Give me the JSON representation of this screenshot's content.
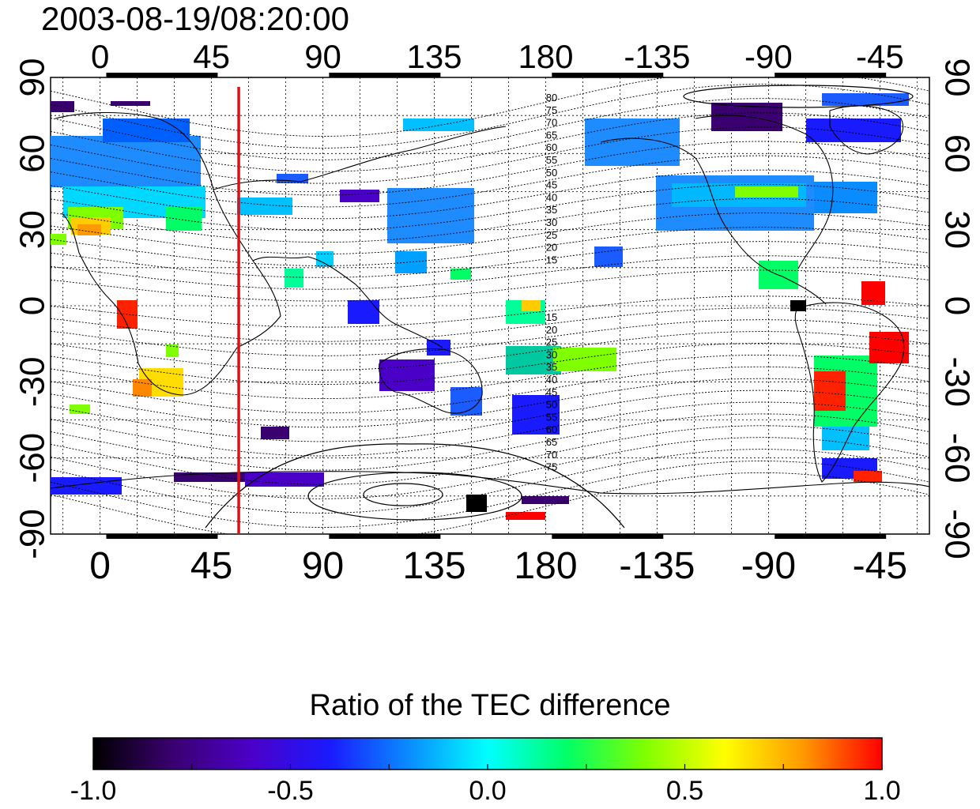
{
  "title": "2003-08-19/08:20:00",
  "map": {
    "lon_tick_labels": [
      "0",
      "45",
      "90",
      "135",
      "180",
      "-135",
      "-90",
      "-45"
    ],
    "lon_tick_values": [
      0,
      45,
      90,
      135,
      180,
      225,
      270,
      315
    ],
    "lat_tick_labels": [
      "90",
      "60",
      "30",
      "0",
      "-30",
      "-60",
      "-90"
    ],
    "lat_tick_values": [
      90,
      60,
      30,
      0,
      -30,
      -60,
      -90
    ],
    "lon_range": [
      -20,
      335
    ],
    "lat_range": [
      -90,
      90
    ],
    "red_meridian_lon": 56,
    "contour_labels_upper": [
      "80",
      "75",
      "70",
      "65",
      "60",
      "55",
      "50",
      "45",
      "40",
      "35",
      "30",
      "25",
      "20",
      "15"
    ],
    "contour_labels_lower": [
      "15",
      "20",
      "25",
      "30",
      "35",
      "40",
      "45",
      "50",
      "55",
      "60",
      "65",
      "70",
      "75"
    ],
    "colors": {
      "meridian": "#dd1111",
      "grid": "#000000",
      "coast": "#000000"
    }
  },
  "colorbar": {
    "title": "Ratio of the TEC difference",
    "tick_labels": [
      "-1.0",
      "-0.5",
      "0.0",
      "0.5",
      "1.0"
    ],
    "tick_values": [
      -1.0,
      -0.5,
      0.0,
      0.5,
      1.0
    ],
    "range": [
      -1.0,
      1.0
    ],
    "colormap": [
      "#000000",
      "#3a0070",
      "#4b00c8",
      "#1a1aff",
      "#0a8cff",
      "#00ffff",
      "#00ff66",
      "#80ff00",
      "#ffff00",
      "#ff9900",
      "#ff0000"
    ]
  }
}
